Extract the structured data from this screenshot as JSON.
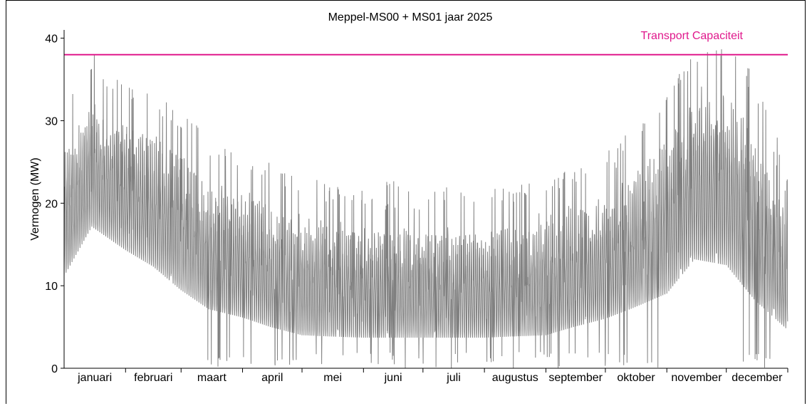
{
  "chart_data": {
    "type": "line",
    "title": "Meppel-MS00 + MS01 jaar 2025",
    "xlabel": "",
    "ylabel": "Vermogen (MW)",
    "ylim": [
      0,
      41
    ],
    "yticks": [
      0,
      10,
      20,
      30,
      40
    ],
    "x_tick_labels": [
      "januari",
      "februari",
      "maart",
      "april",
      "mei",
      "juni",
      "juli",
      "augustus",
      "september",
      "oktober",
      "november",
      "december"
    ],
    "grid": false,
    "series": [
      {
        "color": "#808080",
        "daily_summary": {
          "x_unit": "day of year",
          "days": [
            1,
            15,
            32,
            46,
            60,
            74,
            91,
            105,
            121,
            135,
            152,
            166,
            182,
            196,
            213,
            227,
            244,
            258,
            274,
            288,
            305,
            319,
            335,
            349,
            365
          ],
          "typical_min": [
            8,
            14,
            11,
            9,
            6,
            4,
            3,
            2,
            1,
            1,
            1,
            1,
            1,
            1,
            1,
            1,
            1,
            2,
            3,
            4,
            5,
            9,
            8,
            4,
            2
          ],
          "typical_max": [
            29,
            35,
            33,
            31,
            29,
            25,
            24,
            22,
            21,
            20,
            19,
            19,
            19,
            19,
            19,
            20,
            21,
            22,
            23,
            26,
            32,
            37,
            38,
            33,
            21
          ],
          "peak": [
            33,
            38.7,
            35,
            33,
            32,
            28,
            26,
            25,
            24,
            22,
            22,
            23,
            22,
            22,
            22,
            22,
            23,
            24.5,
            27.5,
            30,
            33.5,
            38.5,
            39.3,
            36,
            25
          ]
        }
      }
    ],
    "reference_line": {
      "label": "Transport Capaciteit",
      "y": 38,
      "color": "#e0188c"
    }
  }
}
